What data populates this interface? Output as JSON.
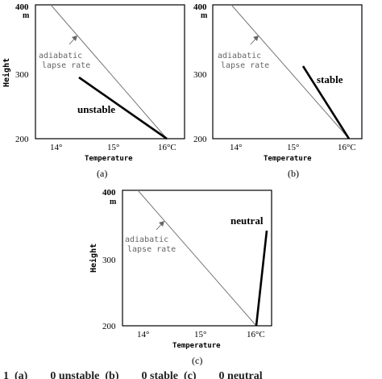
{
  "panels": [
    {
      "id": "a",
      "caption": "(a)",
      "y_top_label": "400",
      "y_unit_label": "m",
      "y_mid_label": "300",
      "y_bottom_label": "200",
      "x_ticks": [
        "14°",
        "15°",
        "16°C"
      ],
      "xlabel": "Temperature",
      "ylabel": "Height",
      "adiabatic_line1": "adiabatic",
      "adiabatic_line2": "lapse rate",
      "condition_label": "unstable"
    },
    {
      "id": "b",
      "caption": "(b)",
      "y_top_label": "400",
      "y_unit_label": "m",
      "y_mid_label": "300",
      "y_bottom_label": "200",
      "x_ticks": [
        "14°",
        "15°",
        "16°C"
      ],
      "xlabel": "Temperature",
      "ylabel": "Height",
      "adiabatic_line1": "adiabatic",
      "adiabatic_line2": "lapse rate",
      "condition_label": "stable"
    },
    {
      "id": "c",
      "caption": "(c)",
      "y_top_label": "400",
      "y_unit_label": "m",
      "y_mid_label": "300",
      "y_bottom_label": "200",
      "x_ticks": [
        "14°",
        "15°",
        "16°C"
      ],
      "xlabel": "Temperature",
      "ylabel": "Height",
      "adiabatic_line1": "adiabatic",
      "adiabatic_line2": "lapse rate",
      "condition_label": "neutral"
    }
  ],
  "footer_caption_fragment": "1  (a)        0 unstable  (b)        0 stable  (c)        0 neutral"
}
